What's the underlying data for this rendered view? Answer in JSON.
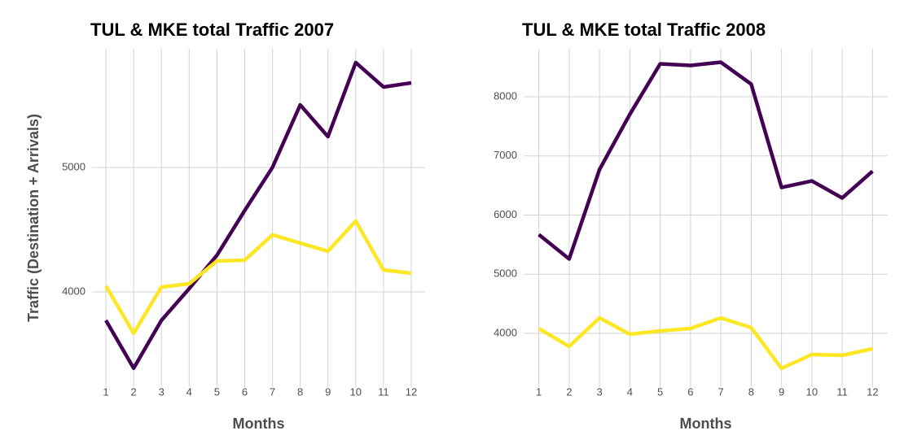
{
  "chart_data": [
    {
      "type": "line",
      "title": "TUL & MKE total Traffic 2007",
      "x_label": "Months",
      "y_label": "Traffic (Destination + Arrivals)",
      "x": [
        1,
        2,
        3,
        4,
        5,
        6,
        7,
        8,
        9,
        10,
        11,
        12
      ],
      "xlim": [
        0.5,
        12.5
      ],
      "xticks": [
        1,
        2,
        3,
        4,
        5,
        6,
        7,
        8,
        9,
        10,
        11,
        12
      ],
      "ylim": [
        3235,
        5954
      ],
      "yticks": [
        4000,
        5000
      ],
      "grid": true,
      "series": [
        {
          "color": "#440154",
          "values": [
            3771,
            3386,
            3771,
            4026,
            4294,
            4654,
            5000,
            5503,
            5248,
            5843,
            5647,
            5680
          ]
        },
        {
          "color": "#fde725",
          "values": [
            4046,
            3667,
            4039,
            4065,
            4248,
            4255,
            4458,
            4392,
            4327,
            4569,
            4176,
            4150
          ]
        }
      ]
    },
    {
      "type": "line",
      "title": "TUL & MKE total Traffic 2008",
      "x_label": "Months",
      "x": [
        1,
        2,
        3,
        4,
        5,
        6,
        7,
        8,
        9,
        10,
        11,
        12
      ],
      "xlim": [
        0.5,
        12.5
      ],
      "xticks": [
        1,
        2,
        3,
        4,
        5,
        6,
        7,
        8,
        9,
        10,
        11,
        12
      ],
      "ylim": [
        3093,
        8811
      ],
      "yticks": [
        4000,
        5000,
        6000,
        7000,
        8000
      ],
      "grid": true,
      "series": [
        {
          "color": "#440154",
          "values": [
            5670,
            5258,
            6770,
            7704,
            8557,
            8529,
            8584,
            8213,
            6467,
            6577,
            6289,
            6742
          ]
        },
        {
          "color": "#fde725",
          "values": [
            4082,
            3780,
            4261,
            3986,
            4041,
            4082,
            4261,
            4096,
            3409,
            3643,
            3629,
            3739
          ]
        }
      ]
    }
  ]
}
